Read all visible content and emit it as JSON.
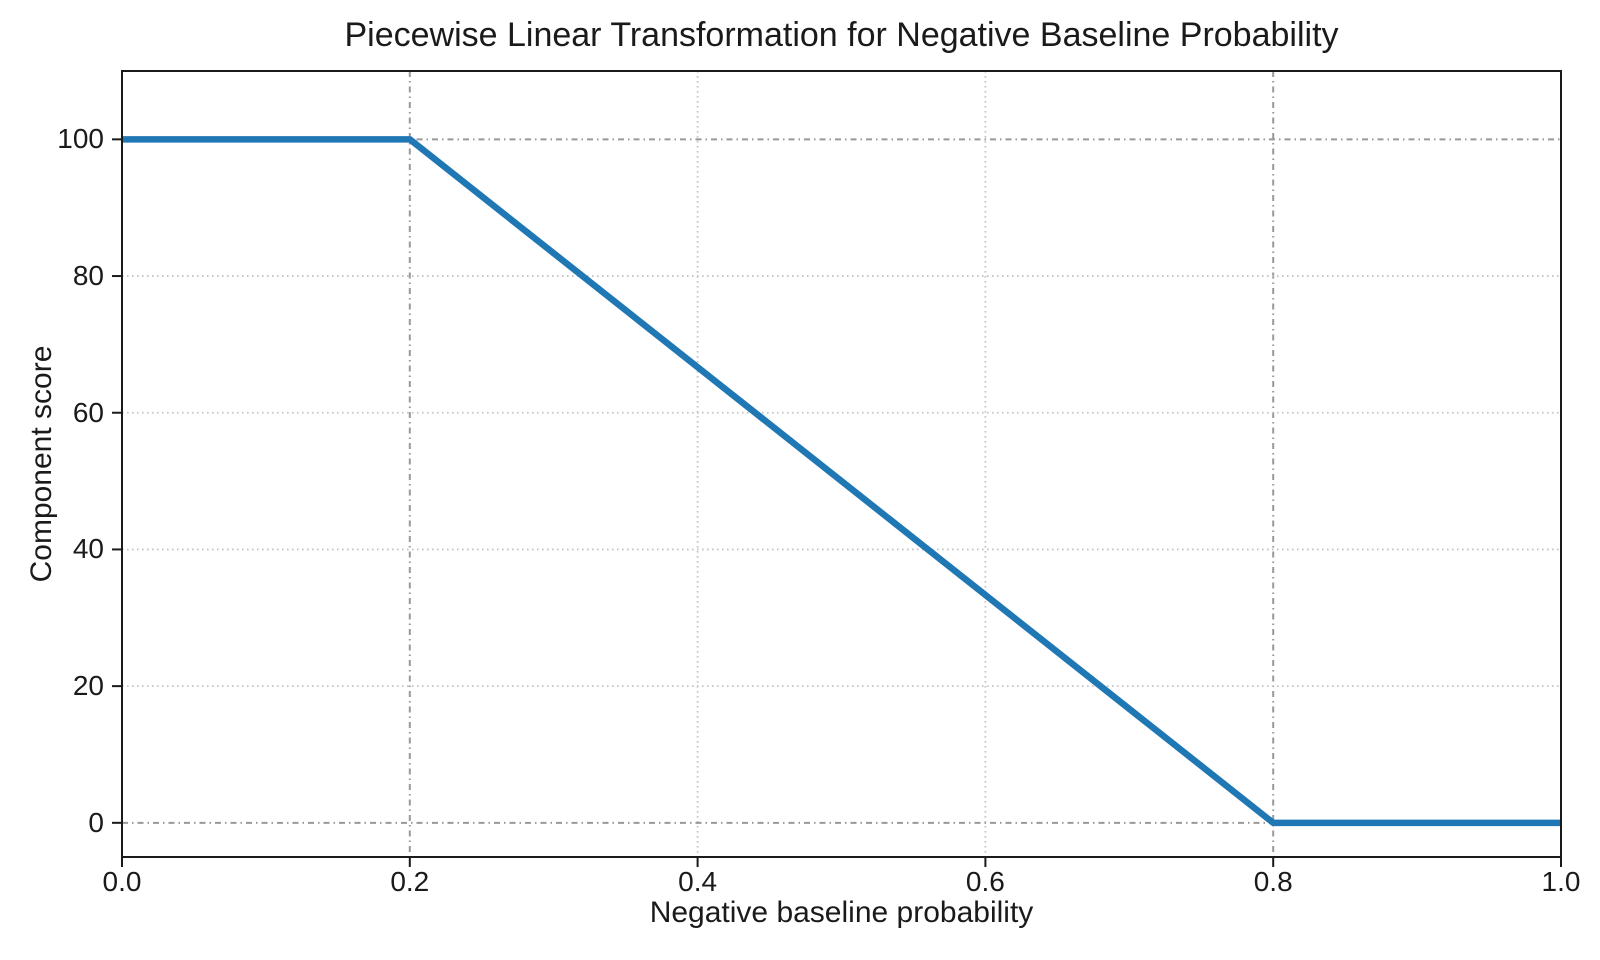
{
  "chart_data": {
    "type": "line",
    "title": "Piecewise Linear Transformation for Negative Baseline Probability",
    "xlabel": "Negative baseline probability",
    "ylabel": "Component score",
    "xlim": [
      0.0,
      1.0
    ],
    "ylim": [
      -5,
      110
    ],
    "xticks": {
      "values": [
        0.0,
        0.2,
        0.4,
        0.6,
        0.8,
        1.0
      ],
      "labels": [
        "0.0",
        "0.2",
        "0.4",
        "0.6",
        "0.8",
        "1.0"
      ]
    },
    "yticks": {
      "values": [
        0,
        20,
        40,
        60,
        80,
        100
      ],
      "labels": [
        "0",
        "20",
        "40",
        "60",
        "80",
        "100"
      ]
    },
    "grid": {
      "on": true,
      "x": [
        {
          "value": 0.2,
          "emphasis": true
        },
        {
          "value": 0.4,
          "emphasis": false
        },
        {
          "value": 0.6,
          "emphasis": false
        },
        {
          "value": 0.8,
          "emphasis": true
        }
      ],
      "y": [
        {
          "value": 0,
          "emphasis": true
        },
        {
          "value": 20,
          "emphasis": false
        },
        {
          "value": 40,
          "emphasis": false
        },
        {
          "value": 60,
          "emphasis": false
        },
        {
          "value": 80,
          "emphasis": false
        },
        {
          "value": 100,
          "emphasis": true
        }
      ]
    },
    "series": [
      {
        "name": "piecewise-linear-score",
        "color": "#1f77b4",
        "linewidth": 6.5,
        "x": [
          0.0,
          0.2,
          0.8,
          1.0
        ],
        "y": [
          100,
          100,
          0,
          0
        ]
      }
    ],
    "legend": null,
    "colors": {
      "grid_regular": "#c4c4c4",
      "grid_emphasis": "#999999",
      "spine": "#1a1a1a",
      "tick": "#1a1a1a",
      "text": "#1a1a1a",
      "background": "#ffffff"
    }
  }
}
